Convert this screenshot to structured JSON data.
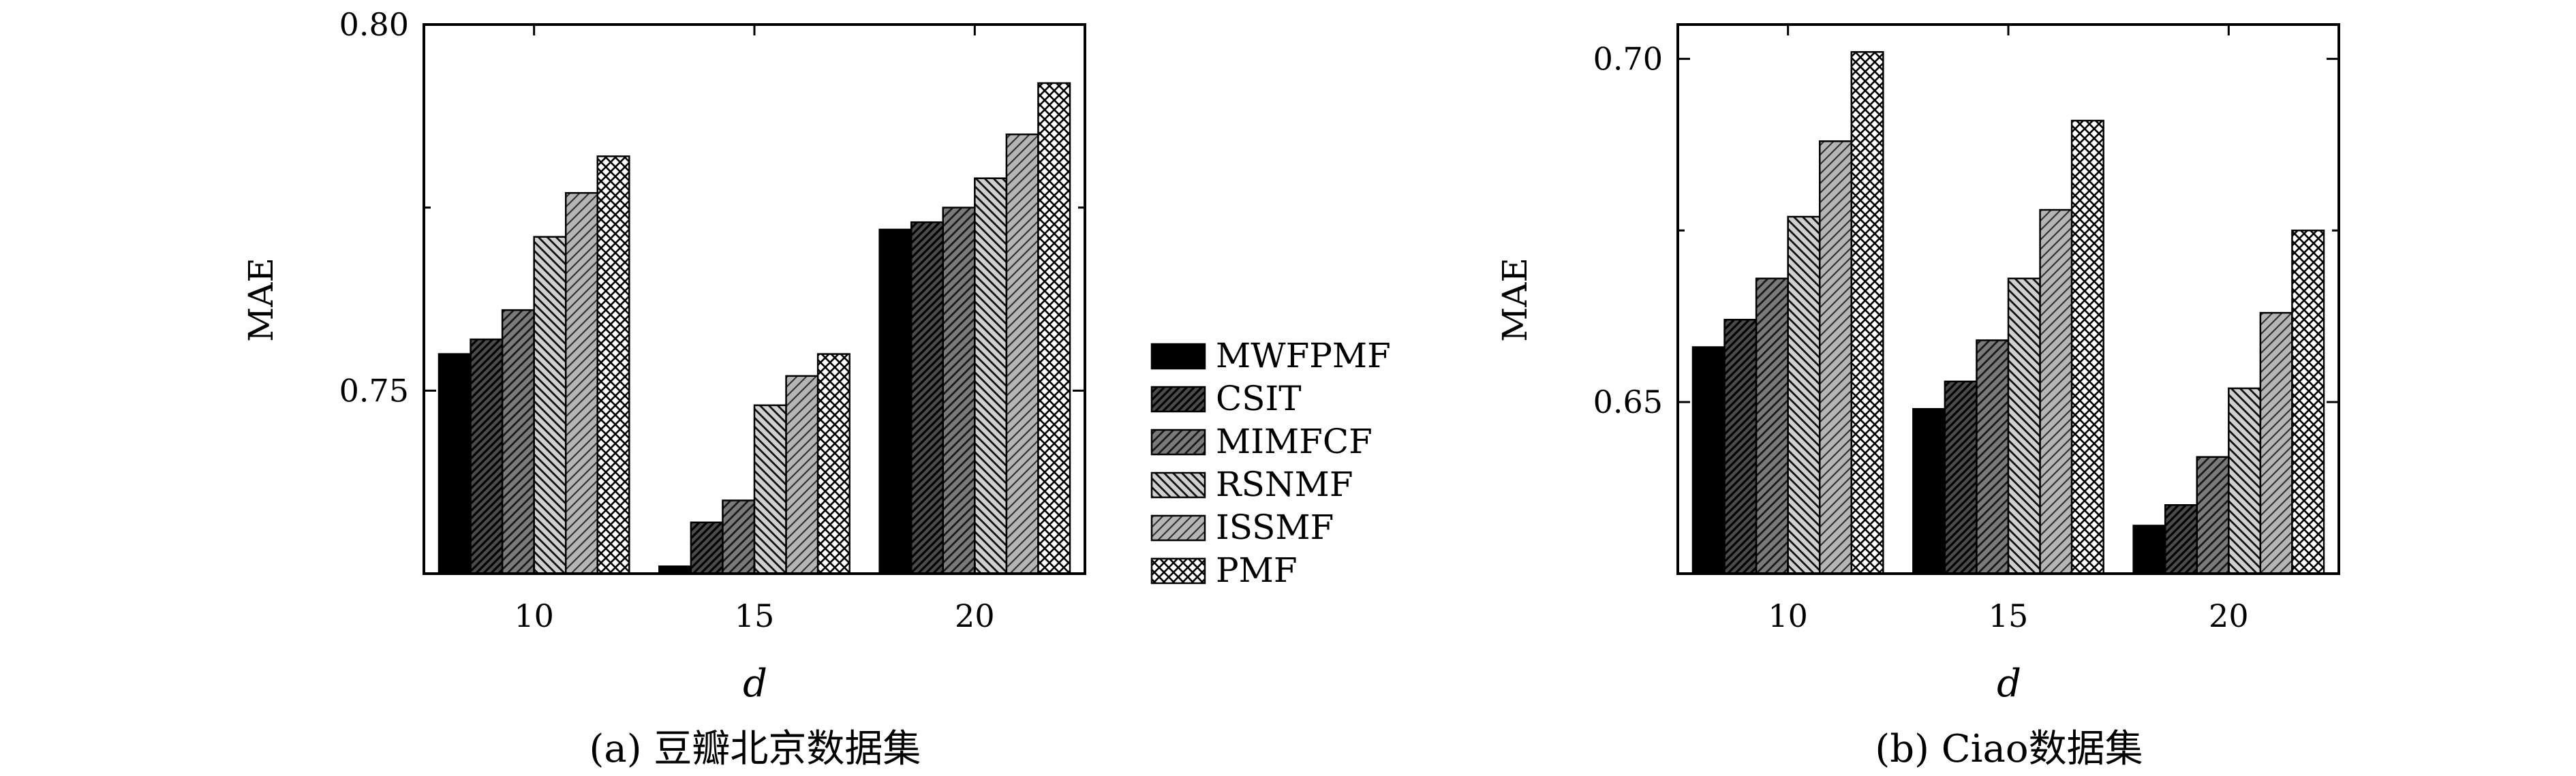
{
  "chart_data": [
    {
      "type": "bar",
      "caption": "(a) 豆瓣北京数据集",
      "xlabel": "d",
      "ylabel": "MAE",
      "categories": [
        "10",
        "15",
        "20"
      ],
      "ylim": [
        0.725,
        0.8
      ],
      "yticks": [
        {
          "value": 0.75,
          "label": "0.75"
        },
        {
          "value": 0.8,
          "label": "0.80"
        }
      ],
      "minor_yticks": [
        0.775
      ],
      "grid": false,
      "series": [
        {
          "name": "MWFPMF",
          "values": [
            0.755,
            0.726,
            0.772
          ]
        },
        {
          "name": "CSIT",
          "values": [
            0.757,
            0.732,
            0.773
          ]
        },
        {
          "name": "MIMFCF",
          "values": [
            0.761,
            0.735,
            0.775
          ]
        },
        {
          "name": "RSNMF",
          "values": [
            0.771,
            0.748,
            0.779
          ]
        },
        {
          "name": "ISSMF",
          "values": [
            0.777,
            0.752,
            0.785
          ]
        },
        {
          "name": "PMF",
          "values": [
            0.782,
            0.755,
            0.792
          ]
        }
      ]
    },
    {
      "type": "bar",
      "caption": "(b) Ciao数据集",
      "xlabel": "d",
      "ylabel": "MAE",
      "categories": [
        "10",
        "15",
        "20"
      ],
      "ylim": [
        0.625,
        0.705
      ],
      "yticks": [
        {
          "value": 0.65,
          "label": "0.65"
        },
        {
          "value": 0.7,
          "label": "0.70"
        }
      ],
      "minor_yticks": [
        0.675
      ],
      "grid": false,
      "series": [
        {
          "name": "MWFPMF",
          "values": [
            0.658,
            0.649,
            0.632
          ]
        },
        {
          "name": "CSIT",
          "values": [
            0.662,
            0.653,
            0.635
          ]
        },
        {
          "name": "MIMFCF",
          "values": [
            0.668,
            0.659,
            0.642
          ]
        },
        {
          "name": "RSNMF",
          "values": [
            0.677,
            0.668,
            0.652
          ]
        },
        {
          "name": "ISSMF",
          "values": [
            0.688,
            0.678,
            0.663
          ]
        },
        {
          "name": "PMF",
          "values": [
            0.701,
            0.691,
            0.675
          ]
        }
      ]
    }
  ],
  "legend": {
    "position": "between-panels",
    "entries": [
      "MWFPMF",
      "CSIT",
      "MIMFCF",
      "RSNMF",
      "ISSMF",
      "PMF"
    ]
  }
}
